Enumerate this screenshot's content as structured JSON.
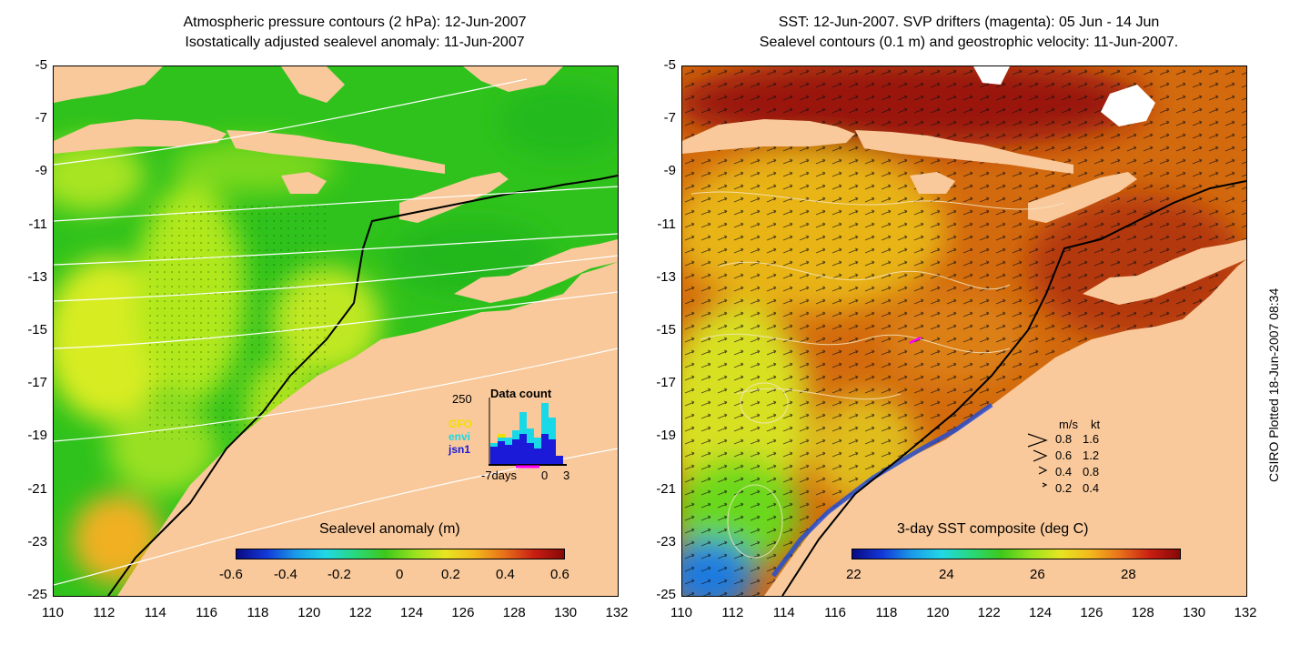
{
  "left_panel": {
    "title_line1": "Atmospheric pressure contours (2 hPa): 12-Jun-2007",
    "title_line2": "Isostatically adjusted sealevel anomaly: 11-Jun-2007",
    "colorbar": {
      "title": "Sealevel anomaly (m)",
      "labels": [
        "-0.6",
        "-0.4",
        "-0.2",
        "0",
        "0.2",
        "0.4",
        "0.6"
      ]
    },
    "inset": {
      "title": "Data count",
      "y_max_label": "250",
      "x_labels": [
        "-7days",
        "0",
        "3"
      ],
      "missions": [
        {
          "name": "GFO",
          "color": "#f0e000"
        },
        {
          "name": "envi",
          "color": "#19d8e8"
        },
        {
          "name": "jsn1",
          "color": "#1a1ad8"
        }
      ]
    }
  },
  "right_panel": {
    "title_line1": "SST: 12-Jun-2007. SVP drifters (magenta): 05 Jun - 14 Jun",
    "title_line2": "Sealevel contours (0.1 m) and geostrophic velocity: 11-Jun-2007.",
    "colorbar": {
      "title": "3-day SST composite (deg C)",
      "labels": [
        "22",
        "24",
        "26",
        "28"
      ]
    },
    "vector_legend": {
      "header_ms": "m/s",
      "header_kt": "kt",
      "rows": [
        {
          "ms": "0.8",
          "kt": "1.6"
        },
        {
          "ms": "0.6",
          "kt": "1.2"
        },
        {
          "ms": "0.4",
          "kt": "0.8"
        },
        {
          "ms": "0.2",
          "kt": "0.4"
        }
      ]
    }
  },
  "axes": {
    "lat_labels": [
      "-5",
      "-7",
      "-9",
      "-11",
      "-13",
      "-15",
      "-17",
      "-19",
      "-21",
      "-23",
      "-25"
    ],
    "lon_labels": [
      "110",
      "112",
      "114",
      "116",
      "118",
      "120",
      "122",
      "124",
      "126",
      "128",
      "130",
      "132"
    ]
  },
  "credit": "CSIRO Plotted 18-Jun-2007 08:34",
  "colors": {
    "land": "#f9c99b",
    "slmap_base": "#2fc21c",
    "sst_base": "#d36a0e",
    "drifter": "#ff00ff"
  }
}
